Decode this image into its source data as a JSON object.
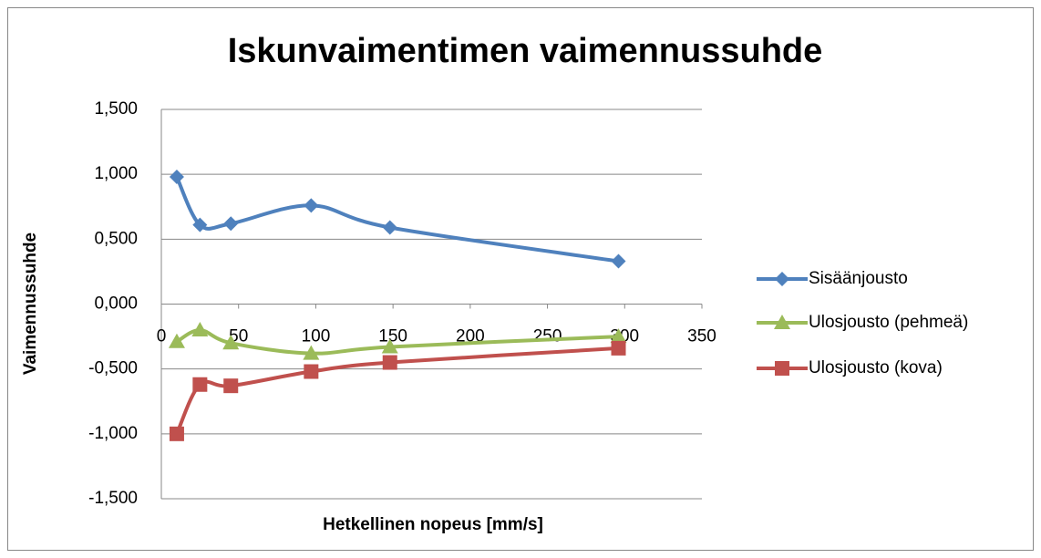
{
  "chart_data": {
    "type": "line",
    "smooth": true,
    "title": "Iskunvaimentimen vaimennussuhde",
    "xlabel": "Hetkellinen nopeus [mm/s]",
    "ylabel": "Vaimennussuhde",
    "xlim": [
      0,
      350
    ],
    "xticks": [
      0,
      50,
      100,
      150,
      200,
      250,
      300,
      350
    ],
    "ylim": [
      -1.5,
      1.5
    ],
    "yticks": [
      {
        "value": -1.5,
        "label": "-1,500"
      },
      {
        "value": -1.0,
        "label": "-1,000"
      },
      {
        "value": -0.5,
        "label": "-0,500"
      },
      {
        "value": 0,
        "label": "0,000"
      },
      {
        "value": 0.5,
        "label": "0,500"
      },
      {
        "value": 1.0,
        "label": "1,000"
      },
      {
        "value": 1.5,
        "label": "1,500"
      }
    ],
    "grid": true,
    "legend": "right",
    "series": [
      {
        "name": "Sisäänjousto",
        "color": "#4f81bd",
        "marker": "diamond",
        "x": [
          10,
          25,
          45,
          97,
          148,
          296
        ],
        "values": [
          0.98,
          0.61,
          0.62,
          0.76,
          0.59,
          0.33
        ]
      },
      {
        "name": "Ulosjousto (pehmeä)",
        "color": "#9bbb59",
        "marker": "triangle",
        "x": [
          10,
          25,
          45,
          97,
          148,
          296
        ],
        "values": [
          -0.29,
          -0.2,
          -0.3,
          -0.38,
          -0.33,
          -0.25
        ]
      },
      {
        "name": "Ulosjousto (kova)",
        "color": "#c0504d",
        "marker": "square",
        "x": [
          10,
          25,
          45,
          97,
          148,
          296
        ],
        "values": [
          -1.0,
          -0.62,
          -0.63,
          -0.52,
          -0.45,
          -0.34
        ]
      }
    ]
  }
}
